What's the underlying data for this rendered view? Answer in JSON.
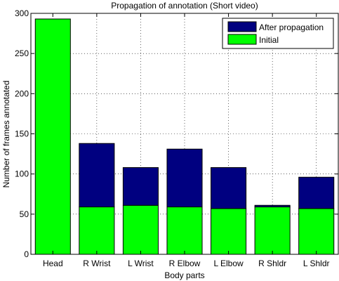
{
  "chart_data": {
    "type": "bar",
    "stacked": true,
    "title": "Propagation of annotation (Short video)",
    "xlabel": "Body parts",
    "ylabel": "Number of frames annotated",
    "categories": [
      "Head",
      "R Wrist",
      "L Wrist",
      "R Elbow",
      "L Elbow",
      "R Shldr",
      "L Shldr"
    ],
    "ylim": [
      0,
      300
    ],
    "yticks": [
      0,
      50,
      100,
      150,
      200,
      250,
      300
    ],
    "grid": true,
    "legend_position": "top-right",
    "series": [
      {
        "name": "Initial",
        "color": "#00ff00",
        "values": [
          293,
          59,
          61,
          59,
          57,
          59,
          57
        ]
      },
      {
        "name": "After propagation",
        "color": "#000080",
        "values": [
          0,
          79,
          47,
          72,
          51,
          2,
          39
        ]
      }
    ],
    "legend_order": [
      "After propagation",
      "Initial"
    ]
  }
}
